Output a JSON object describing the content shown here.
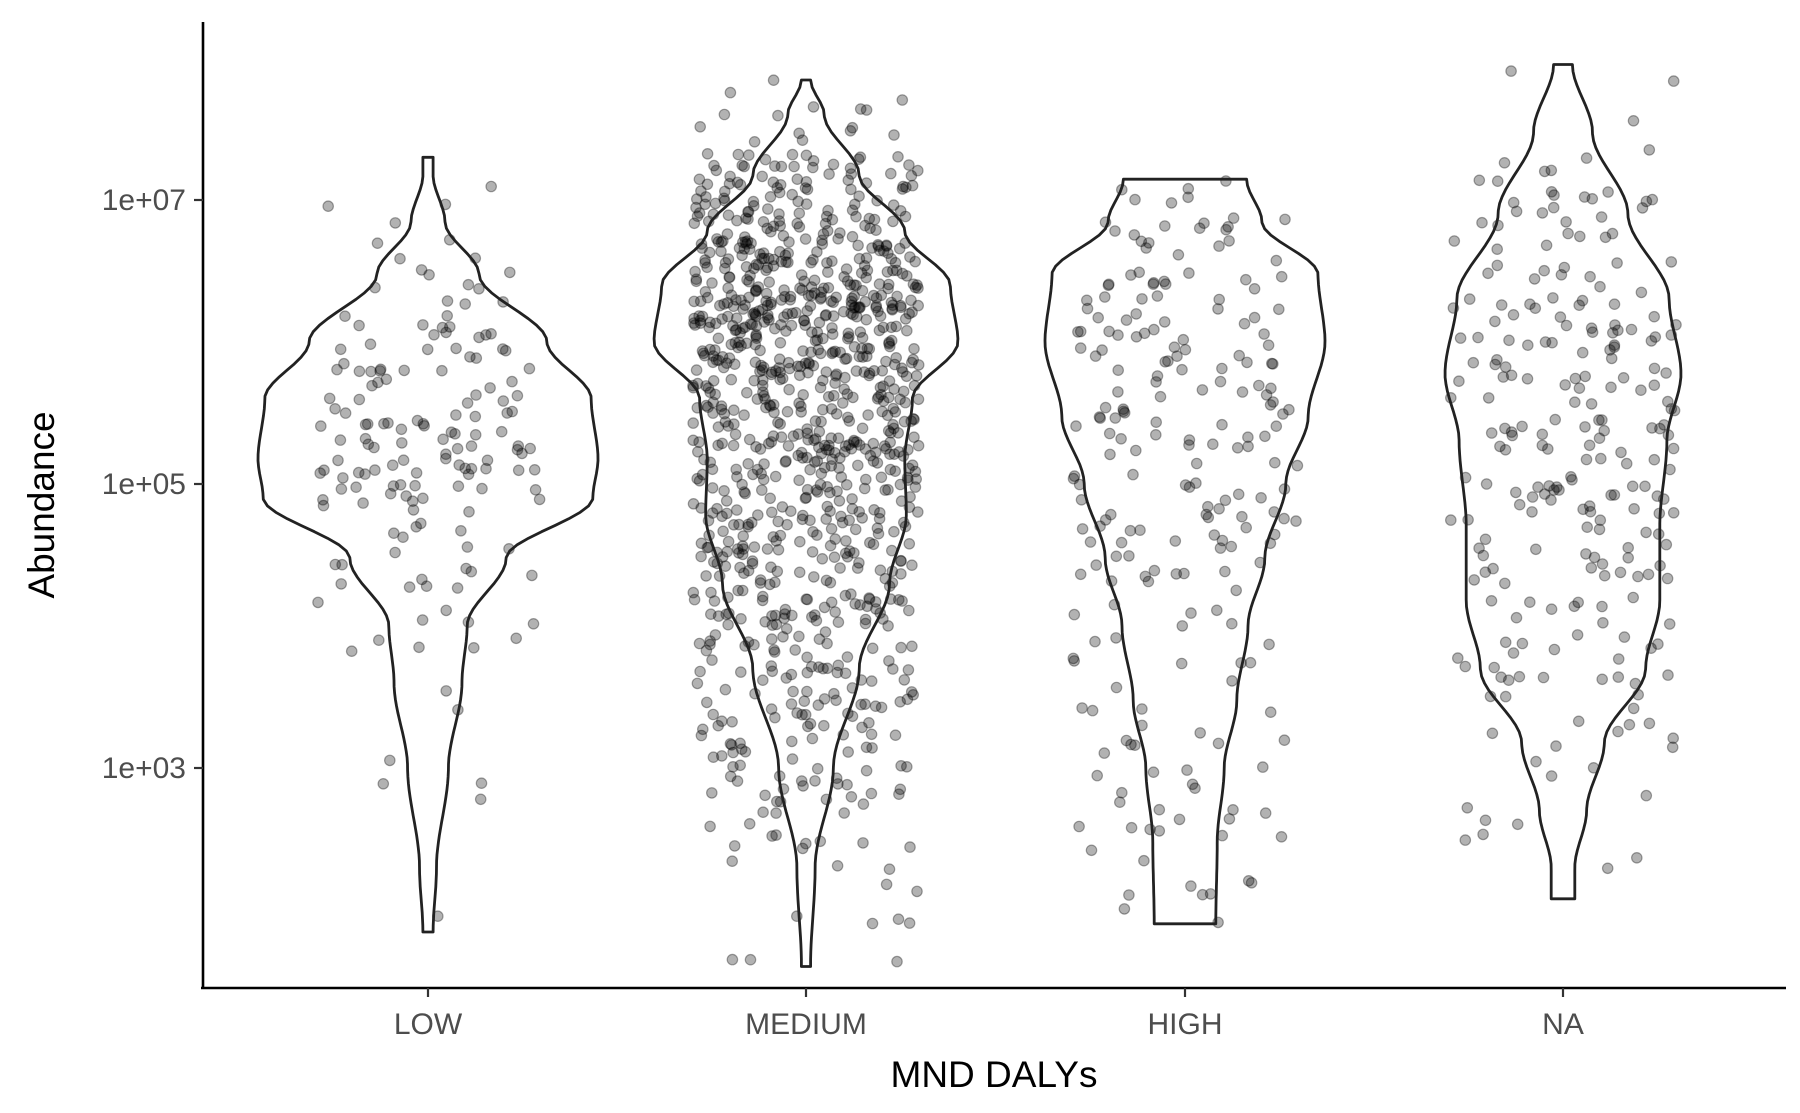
{
  "chart_data": {
    "type": "violin",
    "xlabel": "MND DALYs",
    "ylabel": "Abundance",
    "y_scale": "log10",
    "ylim": [
      20,
      200000000
    ],
    "y_ticks": [
      {
        "value": 1000,
        "label": "1e+03"
      },
      {
        "value": 100000,
        "label": "1e+05"
      },
      {
        "value": 10000000,
        "label": "1e+07"
      }
    ],
    "categories": [
      "LOW",
      "MEDIUM",
      "HIGH",
      "NA"
    ],
    "groups": [
      {
        "category": "LOW",
        "n_points": 160,
        "min": 70,
        "max": 20000000,
        "density": [
          [
            70,
            0.03
          ],
          [
            200,
            0.05
          ],
          [
            1000,
            0.12
          ],
          [
            4000,
            0.2
          ],
          [
            10000,
            0.23
          ],
          [
            30000,
            0.46
          ],
          [
            80000,
            0.97
          ],
          [
            150000,
            1.0
          ],
          [
            400000,
            0.96
          ],
          [
            1000000,
            0.7
          ],
          [
            3000000,
            0.3
          ],
          [
            7000000,
            0.1
          ],
          [
            15000000,
            0.03
          ],
          [
            20000000,
            0.03
          ]
        ]
      },
      {
        "category": "MEDIUM",
        "n_points": 1000,
        "min": 40,
        "max": 70000000,
        "density": [
          [
            40,
            0.03
          ],
          [
            200,
            0.06
          ],
          [
            1000,
            0.18
          ],
          [
            5000,
            0.35
          ],
          [
            20000,
            0.55
          ],
          [
            60000,
            0.66
          ],
          [
            150000,
            0.65
          ],
          [
            400000,
            0.7
          ],
          [
            1000000,
            1.0
          ],
          [
            2500000,
            0.95
          ],
          [
            6000000,
            0.65
          ],
          [
            15000000,
            0.35
          ],
          [
            40000000,
            0.12
          ],
          [
            70000000,
            0.03
          ]
        ]
      },
      {
        "category": "HIGH",
        "n_points": 220,
        "min": 80,
        "max": 14000000,
        "density": [
          [
            80,
            0.22
          ],
          [
            300,
            0.23
          ],
          [
            1000,
            0.28
          ],
          [
            3000,
            0.37
          ],
          [
            10000,
            0.45
          ],
          [
            30000,
            0.57
          ],
          [
            100000,
            0.72
          ],
          [
            300000,
            0.88
          ],
          [
            1000000,
            1.0
          ],
          [
            3000000,
            0.95
          ],
          [
            7000000,
            0.55
          ],
          [
            14000000,
            0.44
          ]
        ]
      },
      {
        "category": "NA",
        "n_points": 240,
        "min": 120,
        "max": 90000000,
        "density": [
          [
            120,
            0.1
          ],
          [
            200,
            0.1
          ],
          [
            500,
            0.2
          ],
          [
            1500,
            0.35
          ],
          [
            5000,
            0.7
          ],
          [
            15000,
            0.82
          ],
          [
            50000,
            0.82
          ],
          [
            200000,
            0.88
          ],
          [
            600000,
            1.0
          ],
          [
            2000000,
            0.9
          ],
          [
            8000000,
            0.55
          ],
          [
            30000000,
            0.25
          ],
          [
            90000000,
            0.08
          ]
        ]
      }
    ]
  }
}
